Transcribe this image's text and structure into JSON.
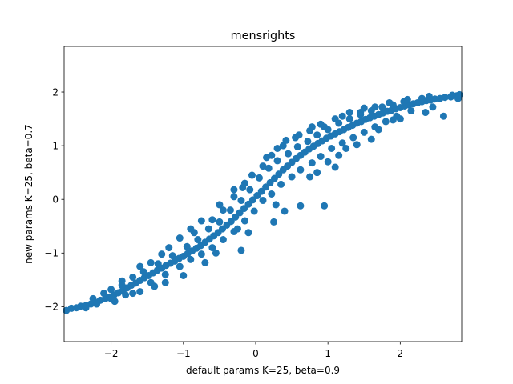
{
  "chart_data": {
    "type": "scatter",
    "title": "mensrights",
    "xlabel": "default params K=25, beta=0.9",
    "ylabel": "new params K=25, beta=0.7",
    "xlim": [
      -2.65,
      2.85
    ],
    "ylim": [
      -2.65,
      2.85
    ],
    "xticks": [
      -2,
      -1,
      0,
      1,
      2
    ],
    "yticks": [
      -2,
      -1,
      0,
      1,
      2
    ],
    "xtick_labels": [
      "−2",
      "−1",
      "0",
      "1",
      "2"
    ],
    "ytick_labels": [
      "−2",
      "−1",
      "0",
      "1",
      "2"
    ],
    "grid": false,
    "legend": "none",
    "marker_color": "#1f77b4",
    "series": [
      {
        "points": [
          [
            -2.62,
            -2.07
          ],
          [
            -2.55,
            -2.03
          ],
          [
            -2.48,
            -2.02
          ],
          [
            -2.42,
            -1.99
          ],
          [
            -2.35,
            -1.98
          ],
          [
            -2.28,
            -1.95
          ],
          [
            -2.22,
            -1.92
          ],
          [
            -2.15,
            -1.88
          ],
          [
            -2.08,
            -1.85
          ],
          [
            -2.02,
            -1.82
          ],
          [
            -1.96,
            -1.78
          ],
          [
            -1.9,
            -1.74
          ],
          [
            -1.84,
            -1.7
          ],
          [
            -1.78,
            -1.65
          ],
          [
            -1.72,
            -1.6
          ],
          [
            -1.66,
            -1.56
          ],
          [
            -1.6,
            -1.51
          ],
          [
            -1.54,
            -1.46
          ],
          [
            -1.48,
            -1.42
          ],
          [
            -1.42,
            -1.37
          ],
          [
            -1.36,
            -1.32
          ],
          [
            -1.3,
            -1.28
          ],
          [
            -1.24,
            -1.23
          ],
          [
            -1.18,
            -1.19
          ],
          [
            -1.12,
            -1.15
          ],
          [
            -1.06,
            -1.1
          ],
          [
            -1.0,
            -1.06
          ],
          [
            -0.94,
            -1.01
          ],
          [
            -0.88,
            -0.96
          ],
          [
            -0.82,
            -0.91
          ],
          [
            -0.76,
            -0.86
          ],
          [
            -0.7,
            -0.8
          ],
          [
            -0.64,
            -0.74
          ],
          [
            -0.58,
            -0.68
          ],
          [
            -0.52,
            -0.62
          ],
          [
            -0.46,
            -0.55
          ],
          [
            -0.4,
            -0.48
          ],
          [
            -0.34,
            -0.41
          ],
          [
            -0.28,
            -0.33
          ],
          [
            -0.22,
            -0.25
          ],
          [
            -0.16,
            -0.17
          ],
          [
            -0.1,
            -0.09
          ],
          [
            -0.04,
            -0.01
          ],
          [
            0.02,
            0.07
          ],
          [
            0.08,
            0.15
          ],
          [
            0.14,
            0.23
          ],
          [
            0.2,
            0.31
          ],
          [
            0.26,
            0.39
          ],
          [
            0.32,
            0.47
          ],
          [
            0.38,
            0.55
          ],
          [
            0.44,
            0.62
          ],
          [
            0.5,
            0.69
          ],
          [
            0.56,
            0.76
          ],
          [
            0.62,
            0.82
          ],
          [
            0.68,
            0.88
          ],
          [
            0.74,
            0.94
          ],
          [
            0.8,
            0.99
          ],
          [
            0.86,
            1.04
          ],
          [
            0.92,
            1.09
          ],
          [
            0.98,
            1.14
          ],
          [
            1.04,
            1.18
          ],
          [
            1.1,
            1.22
          ],
          [
            1.16,
            1.26
          ],
          [
            1.22,
            1.3
          ],
          [
            1.28,
            1.34
          ],
          [
            1.34,
            1.38
          ],
          [
            1.4,
            1.42
          ],
          [
            1.46,
            1.45
          ],
          [
            1.52,
            1.49
          ],
          [
            1.58,
            1.52
          ],
          [
            1.64,
            1.55
          ],
          [
            1.7,
            1.58
          ],
          [
            1.76,
            1.61
          ],
          [
            1.82,
            1.64
          ],
          [
            1.88,
            1.66
          ],
          [
            1.94,
            1.69
          ],
          [
            2.0,
            1.71
          ],
          [
            2.06,
            1.74
          ],
          [
            2.12,
            1.76
          ],
          [
            2.18,
            1.78
          ],
          [
            2.24,
            1.8
          ],
          [
            2.3,
            1.82
          ],
          [
            2.36,
            1.84
          ],
          [
            2.42,
            1.85
          ],
          [
            2.48,
            1.87
          ],
          [
            2.55,
            1.88
          ],
          [
            2.62,
            1.9
          ],
          [
            2.7,
            1.91
          ],
          [
            2.78,
            1.93
          ],
          [
            2.82,
            1.95
          ],
          [
            -2.1,
            -1.75
          ],
          [
            -1.95,
            -1.9
          ],
          [
            -1.85,
            -1.6
          ],
          [
            -1.7,
            -1.75
          ],
          [
            -1.55,
            -1.35
          ],
          [
            -1.45,
            -1.55
          ],
          [
            -1.35,
            -1.2
          ],
          [
            -1.25,
            -1.4
          ],
          [
            -1.15,
            -1.05
          ],
          [
            -1.05,
            -1.25
          ],
          [
            -0.95,
            -0.88
          ],
          [
            -0.9,
            -1.12
          ],
          [
            -0.8,
            -0.75
          ],
          [
            -0.75,
            -1.02
          ],
          [
            -0.65,
            -0.55
          ],
          [
            -0.6,
            -0.9
          ],
          [
            -0.5,
            -0.42
          ],
          [
            -0.45,
            -0.75
          ],
          [
            -0.35,
            -0.2
          ],
          [
            -0.3,
            -0.6
          ],
          [
            -0.2,
            -0.02
          ],
          [
            -0.15,
            -0.4
          ],
          [
            -0.08,
            0.18
          ],
          [
            -0.02,
            -0.22
          ],
          [
            0.05,
            0.4
          ],
          [
            0.1,
            -0.02
          ],
          [
            0.18,
            0.58
          ],
          [
            0.22,
            0.1
          ],
          [
            0.3,
            0.72
          ],
          [
            0.35,
            0.28
          ],
          [
            0.45,
            0.85
          ],
          [
            0.5,
            0.42
          ],
          [
            0.58,
            0.98
          ],
          [
            0.62,
            0.55
          ],
          [
            0.72,
            1.08
          ],
          [
            0.78,
            0.68
          ],
          [
            0.85,
            1.2
          ],
          [
            0.9,
            0.8
          ],
          [
            1.0,
            1.3
          ],
          [
            1.05,
            0.95
          ],
          [
            1.15,
            1.42
          ],
          [
            1.2,
            1.05
          ],
          [
            1.3,
            1.5
          ],
          [
            1.35,
            1.15
          ],
          [
            1.45,
            1.58
          ],
          [
            1.5,
            1.25
          ],
          [
            1.6,
            1.65
          ],
          [
            1.65,
            1.35
          ],
          [
            1.75,
            1.72
          ],
          [
            1.8,
            1.45
          ],
          [
            1.9,
            1.76
          ],
          [
            1.95,
            1.55
          ],
          [
            2.05,
            1.82
          ],
          [
            2.15,
            1.65
          ],
          [
            2.3,
            1.88
          ],
          [
            2.45,
            1.72
          ],
          [
            2.6,
            1.55
          ],
          [
            2.72,
            1.94
          ],
          [
            2.8,
            1.88
          ],
          [
            2.4,
            1.92
          ],
          [
            1.9,
            1.48
          ],
          [
            1.6,
            1.12
          ],
          [
            1.25,
            0.95
          ],
          [
            1.0,
            0.7
          ],
          [
            0.75,
            0.42
          ],
          [
            0.62,
            -0.12
          ],
          [
            0.95,
            -0.12
          ],
          [
            0.4,
            -0.22
          ],
          [
            0.28,
            -0.1
          ],
          [
            1.15,
            0.82
          ],
          [
            0.25,
            -0.42
          ],
          [
            -0.25,
            -0.55
          ],
          [
            -0.1,
            -0.62
          ],
          [
            -0.2,
            -0.95
          ],
          [
            -0.55,
            -1.0
          ],
          [
            -0.7,
            -1.18
          ],
          [
            -1.0,
            -1.42
          ],
          [
            -1.25,
            -1.55
          ],
          [
            -1.4,
            -1.62
          ],
          [
            -1.6,
            -1.72
          ],
          [
            -1.8,
            -1.78
          ],
          [
            -2.0,
            -1.85
          ],
          [
            -2.2,
            -1.95
          ],
          [
            -2.35,
            -2.02
          ],
          [
            -1.85,
            -1.52
          ],
          [
            -1.6,
            -1.25
          ],
          [
            -1.3,
            -1.02
          ],
          [
            -1.05,
            -0.72
          ],
          [
            -0.85,
            -0.62
          ],
          [
            -0.6,
            -0.38
          ],
          [
            -0.45,
            -0.2
          ],
          [
            -0.3,
            0.05
          ],
          [
            -0.18,
            0.22
          ],
          [
            -0.05,
            0.45
          ],
          [
            0.1,
            0.62
          ],
          [
            0.22,
            0.82
          ],
          [
            0.38,
            1.0
          ],
          [
            0.55,
            1.15
          ],
          [
            0.75,
            1.28
          ],
          [
            0.95,
            1.35
          ],
          [
            1.2,
            1.55
          ],
          [
            1.45,
            1.62
          ],
          [
            1.65,
            1.72
          ],
          [
            1.85,
            1.8
          ],
          [
            2.1,
            1.86
          ],
          [
            0.78,
            1.35
          ],
          [
            0.6,
            1.2
          ],
          [
            0.42,
            1.1
          ],
          [
            0.3,
            0.95
          ],
          [
            0.15,
            0.78
          ],
          [
            -0.15,
            0.3
          ],
          [
            -0.3,
            0.18
          ],
          [
            -0.5,
            -0.1
          ],
          [
            -0.75,
            -0.4
          ],
          [
            -0.9,
            -0.55
          ],
          [
            -1.2,
            -0.9
          ],
          [
            -1.45,
            -1.18
          ],
          [
            -1.7,
            -1.45
          ],
          [
            -2.0,
            -1.68
          ],
          [
            -2.25,
            -1.85
          ],
          [
            1.5,
            1.7
          ],
          [
            1.3,
            1.62
          ],
          [
            1.1,
            1.5
          ],
          [
            0.9,
            1.4
          ],
          [
            2.35,
            1.62
          ],
          [
            2.0,
            1.5
          ],
          [
            1.7,
            1.3
          ],
          [
            1.4,
            1.02
          ],
          [
            1.1,
            0.6
          ],
          [
            0.85,
            0.5
          ]
        ]
      }
    ]
  }
}
